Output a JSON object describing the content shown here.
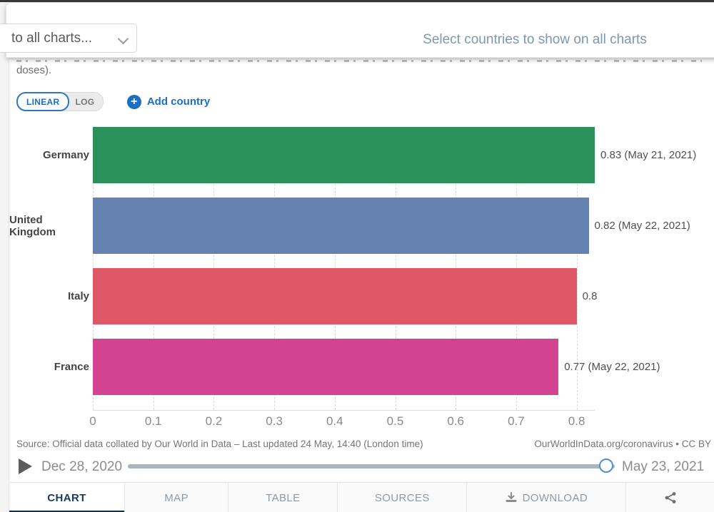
{
  "overlay": {
    "dropdown_value": "to all charts...",
    "hint": "Select countries to show on all charts"
  },
  "subtitle_fragment": "doses).",
  "controls": {
    "linear_label": "LINEAR",
    "log_label": "LOG",
    "add_country_label": "Add country"
  },
  "chart_data": {
    "type": "bar",
    "orientation": "horizontal",
    "categories": [
      "Germany",
      "United Kingdom",
      "Italy",
      "France"
    ],
    "values": [
      0.83,
      0.82,
      0.8,
      0.77
    ],
    "value_labels": [
      "0.83 (May 21, 2021)",
      "0.82 (May 22, 2021)",
      "0.8",
      "0.77 (May 22, 2021)"
    ],
    "bar_colors": [
      "#2a915a",
      "#6581ad",
      "#dd5767",
      "#d24392"
    ],
    "x_tick_labels": [
      "0",
      "0.1",
      "0.2",
      "0.3",
      "0.4",
      "0.5",
      "0.6",
      "0.7",
      "0.8"
    ],
    "x_tick_values": [
      0,
      0.1,
      0.2,
      0.3,
      0.4,
      0.5,
      0.6,
      0.7,
      0.8
    ],
    "xlim": [
      0,
      0.83
    ],
    "grid": "dashed-vertical",
    "title": "",
    "xlabel": "",
    "ylabel": ""
  },
  "source": {
    "left": "Source: Official data collated by Our World in Data – Last updated 24 May, 14:40 (London time)",
    "right": "OurWorldInData.org/coronavirus • CC BY"
  },
  "timeline": {
    "start_label": "Dec 28, 2020",
    "end_label": "May 23, 2021"
  },
  "tabs": [
    {
      "label": "CHART",
      "active": true,
      "icon": ""
    },
    {
      "label": "MAP",
      "active": false,
      "icon": ""
    },
    {
      "label": "TABLE",
      "active": false,
      "icon": ""
    },
    {
      "label": "SOURCES",
      "active": false,
      "icon": ""
    },
    {
      "label": "DOWNLOAD",
      "active": false,
      "icon": "download-icon"
    },
    {
      "label": "",
      "active": false,
      "icon": "share-icon"
    }
  ],
  "colors": {
    "accent_blue": "#1d6ec5",
    "hint_text": "#7e96af",
    "active_tab": "#1a2e44",
    "slider_handle_border": "#4a90d9"
  }
}
